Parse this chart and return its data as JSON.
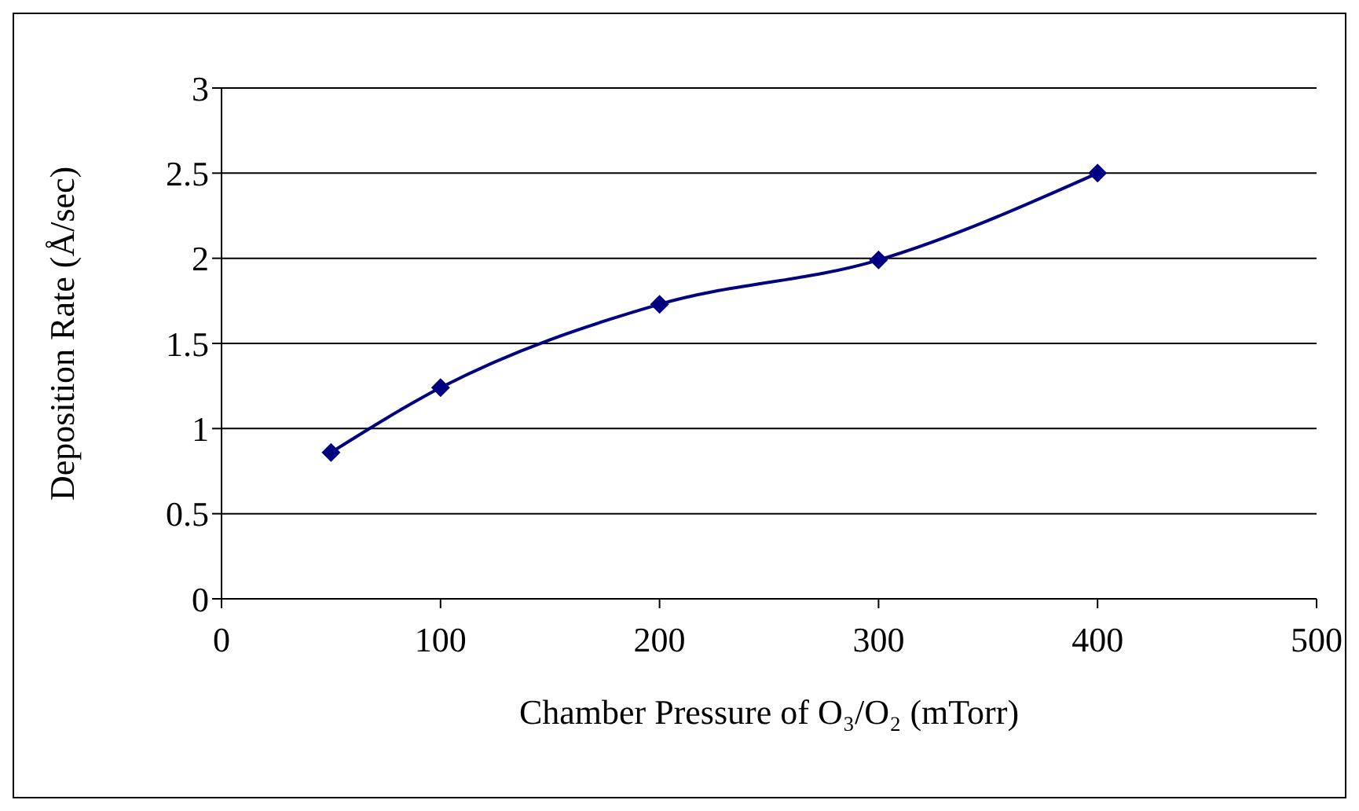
{
  "chart_data": {
    "type": "line",
    "xlabel": "Chamber Pressure of O₃/O₂ (mTorr)",
    "ylabel": "Deposition Rate (Å/sec)",
    "x": [
      50,
      100,
      200,
      300,
      400
    ],
    "series": [
      {
        "color": "#000080",
        "values": [
          0.86,
          1.24,
          1.73,
          1.99,
          2.5
        ]
      }
    ],
    "xlim": [
      0,
      500
    ],
    "xticks": [
      0,
      100,
      200,
      300,
      400,
      500
    ],
    "ylim": [
      0,
      3
    ],
    "yticks": [
      0,
      0.5,
      1,
      1.5,
      2,
      2.5,
      3
    ],
    "grid": "y",
    "legend": false,
    "marker": "diamond",
    "line_style": "solid"
  }
}
